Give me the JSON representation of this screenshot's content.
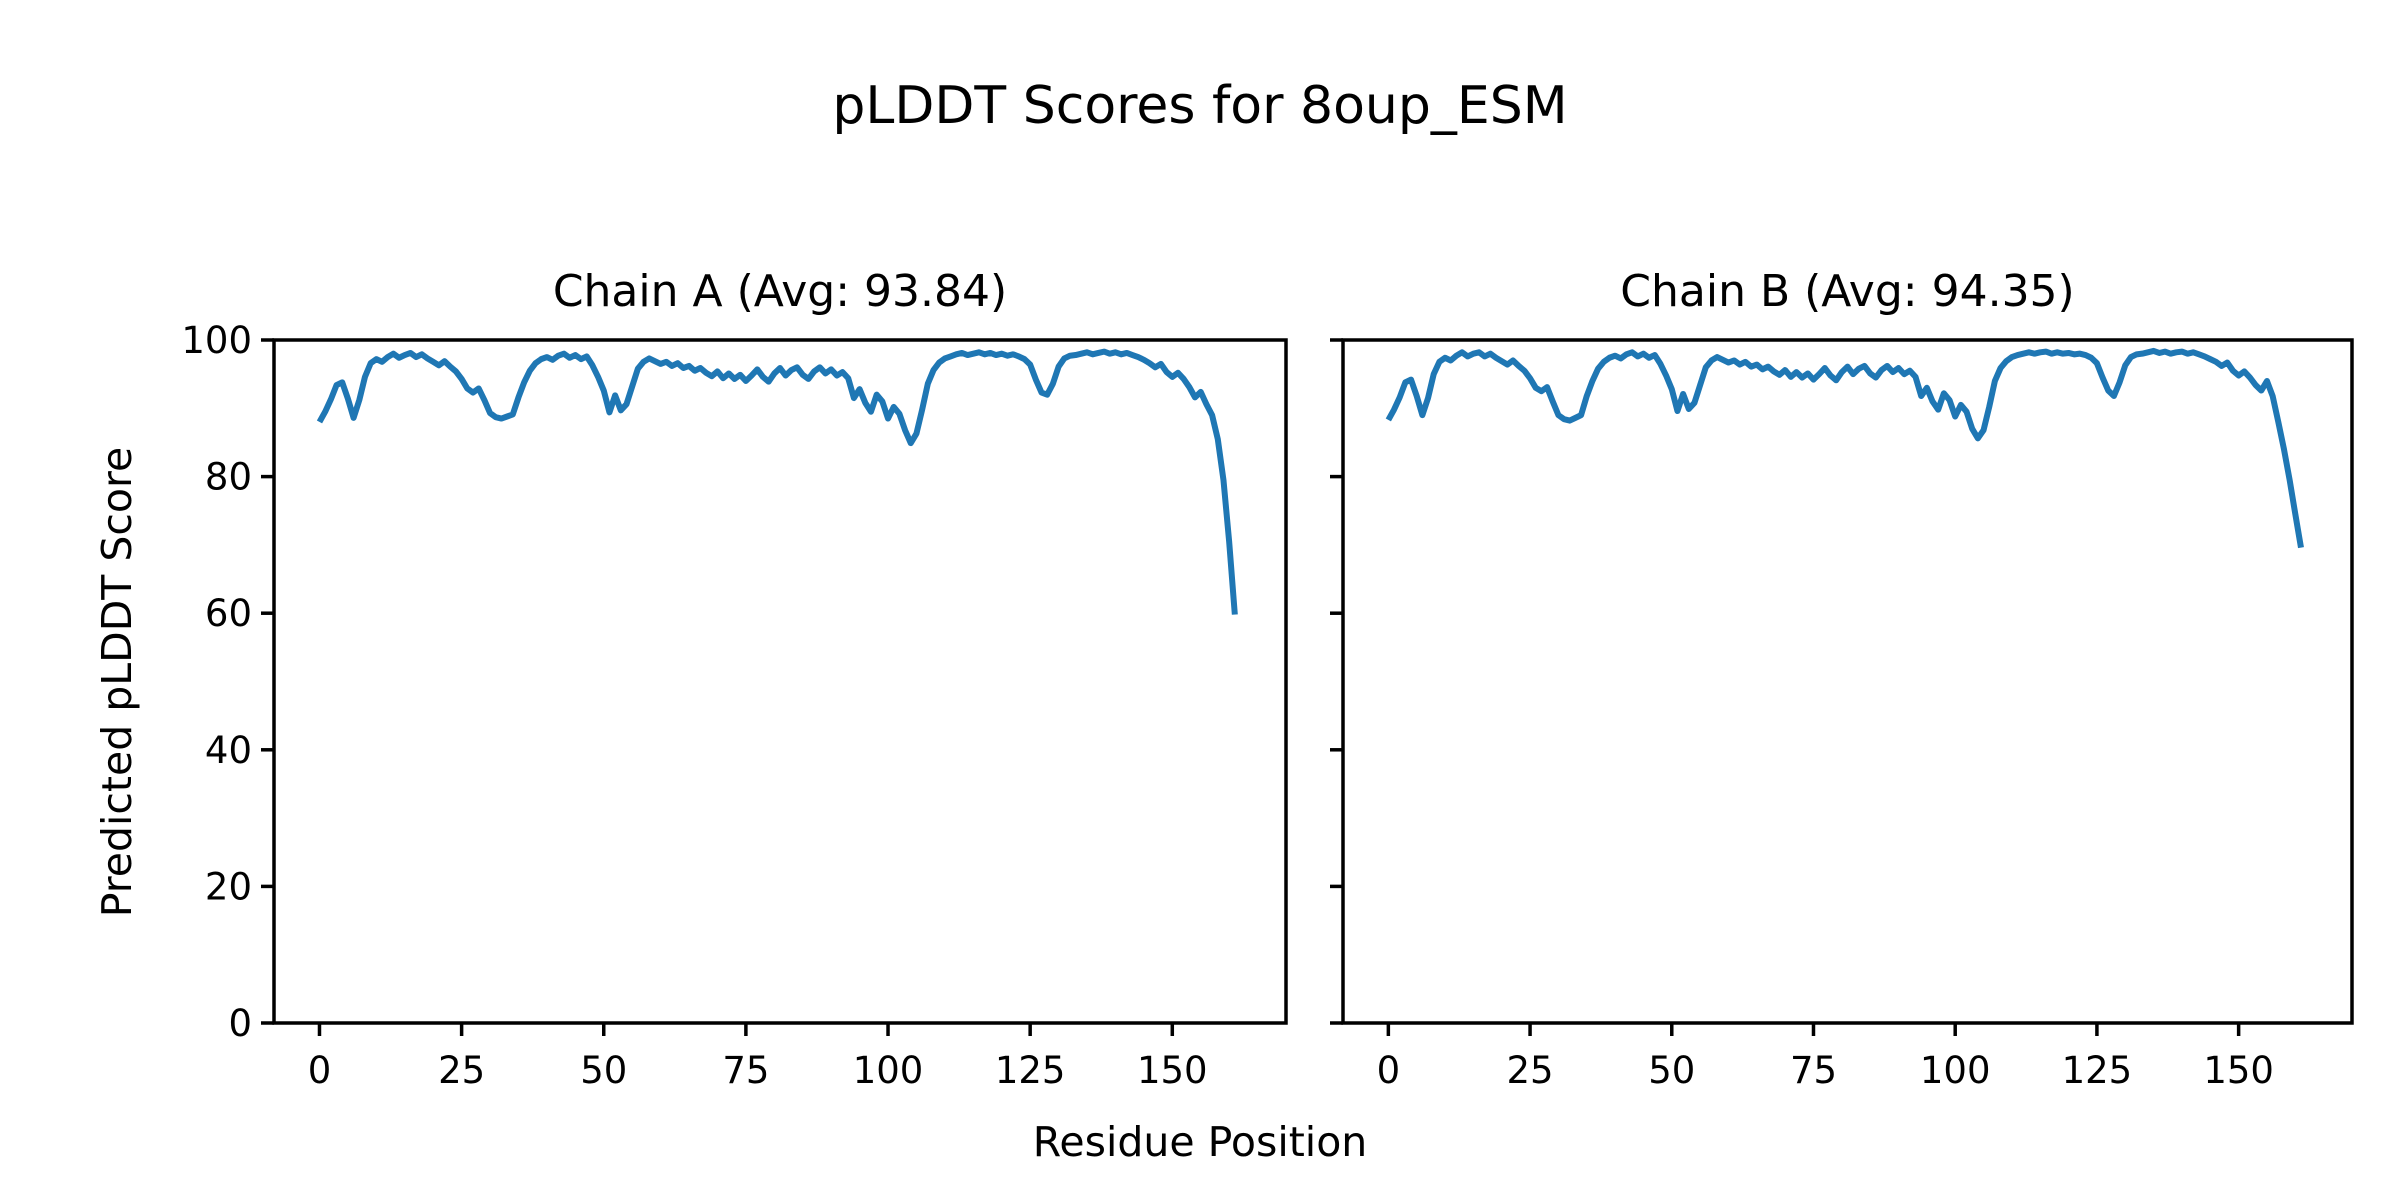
{
  "figure": {
    "title": "pLDDT Scores for 8oup_ESM",
    "xlabel": "Residue Position",
    "ylabel": "Predicted pLDDT Score",
    "background": "#ffffff",
    "text_color": "#000000",
    "line_color": "#1f77b4"
  },
  "chart_data": [
    {
      "type": "line",
      "title": "Chain A (Avg: 93.84)",
      "chain": "A",
      "average_plddt": 93.84,
      "xlabel": "Residue Position",
      "ylabel": "Predicted pLDDT Score",
      "xticks": [
        0,
        25,
        50,
        75,
        100,
        125,
        150
      ],
      "yticks": [
        0,
        20,
        40,
        60,
        80,
        100
      ],
      "xlim": [
        -8,
        170
      ],
      "ylim": [
        0,
        100
      ],
      "grid": false,
      "legend": "none",
      "x_start": 0,
      "series": [
        {
          "name": "pLDDT",
          "color": "#1f77b4",
          "values": [
            88.0,
            89.5,
            91.3,
            93.4,
            93.8,
            91.4,
            88.6,
            91.2,
            94.6,
            96.6,
            97.2,
            96.8,
            97.5,
            98.0,
            97.4,
            97.8,
            98.1,
            97.5,
            97.9,
            97.3,
            96.8,
            96.3,
            96.9,
            96.1,
            95.4,
            94.3,
            92.9,
            92.3,
            92.9,
            91.2,
            89.3,
            88.7,
            88.5,
            88.8,
            89.1,
            91.6,
            93.8,
            95.5,
            96.6,
            97.2,
            97.5,
            97.1,
            97.7,
            98.0,
            97.4,
            97.8,
            97.2,
            97.6,
            96.3,
            94.6,
            92.6,
            89.4,
            91.9,
            89.7,
            90.6,
            93.2,
            95.8,
            96.8,
            97.3,
            96.9,
            96.5,
            96.8,
            96.2,
            96.6,
            95.9,
            96.2,
            95.5,
            95.9,
            95.2,
            94.7,
            95.4,
            94.4,
            95.1,
            94.3,
            94.9,
            94.0,
            94.8,
            95.7,
            94.6,
            93.9,
            95.1,
            95.9,
            94.8,
            95.6,
            96.0,
            94.9,
            94.3,
            95.4,
            96.0,
            95.1,
            95.7,
            94.8,
            95.3,
            94.4,
            91.5,
            92.8,
            90.8,
            89.5,
            92.0,
            91.0,
            88.5,
            90.2,
            89.2,
            86.8,
            84.9,
            86.3,
            89.8,
            93.6,
            95.6,
            96.7,
            97.3,
            97.6,
            97.9,
            98.1,
            97.8,
            98.0,
            98.2,
            97.9,
            98.1,
            97.8,
            98.0,
            97.7,
            97.9,
            97.6,
            97.2,
            96.4,
            94.2,
            92.3,
            92.0,
            93.6,
            96.1,
            97.3,
            97.7,
            97.8,
            98.0,
            98.2,
            97.9,
            98.1,
            98.3,
            98.0,
            98.2,
            97.9,
            98.1,
            97.8,
            97.5,
            97.1,
            96.6,
            96.0,
            96.5,
            95.3,
            94.6,
            95.2,
            94.3,
            93.1,
            91.6,
            92.4,
            90.6,
            89.0,
            85.5,
            79.5,
            70.5,
            59.8
          ]
        }
      ]
    },
    {
      "type": "line",
      "title": "Chain B (Avg: 94.35)",
      "chain": "B",
      "average_plddt": 94.35,
      "xlabel": "Residue Position",
      "ylabel": "Predicted pLDDT Score",
      "xticks": [
        0,
        25,
        50,
        75,
        100,
        125,
        150
      ],
      "yticks": [
        0,
        20,
        40,
        60,
        80,
        100
      ],
      "xlim": [
        -8,
        170
      ],
      "ylim": [
        0,
        100
      ],
      "grid": false,
      "legend": "none",
      "x_start": 0,
      "series": [
        {
          "name": "pLDDT",
          "color": "#1f77b4",
          "values": [
            88.3,
            89.8,
            91.6,
            93.8,
            94.2,
            91.8,
            89.0,
            91.5,
            95.0,
            96.8,
            97.4,
            97.0,
            97.7,
            98.2,
            97.6,
            98.0,
            98.2,
            97.6,
            98.0,
            97.4,
            96.9,
            96.4,
            97.0,
            96.2,
            95.5,
            94.4,
            93.0,
            92.5,
            93.1,
            91.0,
            89.0,
            88.4,
            88.2,
            88.6,
            89.0,
            91.8,
            94.0,
            95.8,
            96.8,
            97.4,
            97.7,
            97.3,
            97.9,
            98.2,
            97.6,
            98.0,
            97.4,
            97.8,
            96.5,
            94.8,
            92.8,
            89.6,
            92.1,
            89.9,
            90.8,
            93.4,
            96.0,
            97.0,
            97.5,
            97.1,
            96.7,
            97.0,
            96.4,
            96.8,
            96.1,
            96.4,
            95.7,
            96.1,
            95.4,
            94.9,
            95.6,
            94.6,
            95.3,
            94.5,
            95.1,
            94.2,
            95.0,
            95.9,
            94.8,
            94.1,
            95.3,
            96.1,
            95.0,
            95.8,
            96.2,
            95.1,
            94.5,
            95.6,
            96.2,
            95.3,
            95.9,
            95.0,
            95.5,
            94.6,
            91.8,
            93.0,
            91.0,
            89.8,
            92.2,
            91.2,
            88.8,
            90.5,
            89.5,
            87.0,
            85.6,
            86.8,
            90.2,
            94.0,
            95.9,
            96.9,
            97.5,
            97.8,
            98.0,
            98.2,
            98.0,
            98.2,
            98.3,
            98.0,
            98.2,
            98.0,
            98.1,
            97.9,
            98.0,
            97.8,
            97.4,
            96.6,
            94.5,
            92.6,
            91.8,
            93.8,
            96.3,
            97.5,
            97.9,
            98.0,
            98.2,
            98.4,
            98.1,
            98.3,
            98.0,
            98.2,
            98.3,
            98.0,
            98.2,
            97.9,
            97.6,
            97.2,
            96.8,
            96.2,
            96.7,
            95.5,
            94.8,
            95.4,
            94.5,
            93.4,
            92.6,
            94.0,
            91.8,
            88.0,
            84.0,
            79.5,
            74.5,
            69.6
          ]
        }
      ]
    }
  ]
}
